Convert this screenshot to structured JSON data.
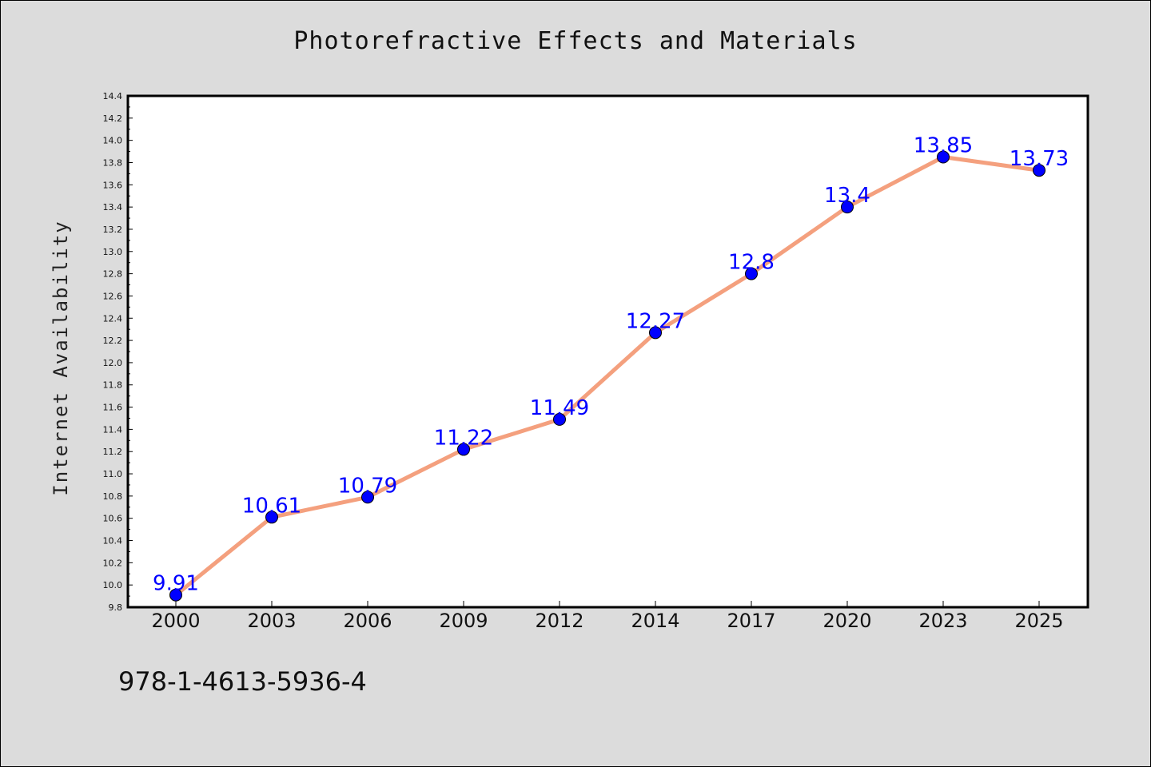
{
  "chart_data": {
    "type": "line",
    "title": "Photorefractive Effects and Materials",
    "xlabel": "",
    "ylabel": "Internet Availability",
    "categories": [
      "2000",
      "2003",
      "2006",
      "2009",
      "2012",
      "2014",
      "2017",
      "2020",
      "2023",
      "2025"
    ],
    "series": [
      {
        "values": [
          9.91,
          10.61,
          10.79,
          11.22,
          11.49,
          12.27,
          12.8,
          13.4,
          13.85,
          13.73
        ],
        "line_color": "#f4a07e",
        "marker_color": "#0000ff"
      }
    ],
    "data_labels": [
      "9.91",
      "10.61",
      "10.79",
      "11.22",
      "11.49",
      "12.27",
      "12.8",
      "13.4",
      "13.85",
      "13.73"
    ],
    "ylim": [
      9.8,
      14.4
    ],
    "yticks": [
      "9.8",
      "10.0",
      "10.2",
      "10.4",
      "10.6",
      "10.8",
      "11.0",
      "11.2",
      "11.4",
      "11.6",
      "11.8",
      "12.0",
      "12.2",
      "12.4",
      "12.6",
      "12.8",
      "13.0",
      "13.2",
      "13.4",
      "13.6",
      "13.8",
      "14.0",
      "14.2",
      "14.4"
    ],
    "grid": false,
    "background": "#dcdcdc",
    "plot_background": "#ffffff"
  },
  "footer": {
    "isbn": "978-1-4613-5936-4"
  }
}
